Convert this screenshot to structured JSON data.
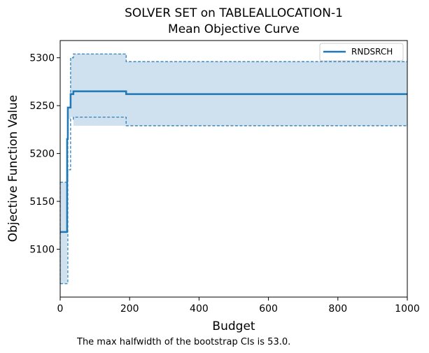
{
  "chart_data": {
    "type": "line",
    "title": "SOLVER SET on TABLEALLOCATION-1",
    "subtitle": "Mean Objective Curve",
    "xlabel": "Budget",
    "ylabel": "Objective Function Value",
    "xlim": [
      0,
      1000
    ],
    "ylim": [
      5050,
      5318
    ],
    "xticks": [
      0,
      200,
      400,
      600,
      800,
      1000
    ],
    "yticks": [
      5100,
      5150,
      5200,
      5250,
      5300
    ],
    "grid": false,
    "legend_position": "top-right",
    "note": "The max halfwidth of the bootstrap CIs is 53.0.",
    "colors": {
      "line": "#1f77b4",
      "fill": "#cfe1ef"
    },
    "series": [
      {
        "name": "RNDSRCH",
        "x": [
          0,
          20,
          22,
          30,
          38,
          190,
          1000
        ],
        "mean": [
          5118,
          5215,
          5248,
          5262,
          5265,
          5262,
          5262
        ],
        "lower": [
          5064,
          5064,
          5183,
          5236,
          5238,
          5229,
          5229
        ],
        "upper": [
          5170,
          5170,
          5248,
          5300,
          5304,
          5296,
          5296
        ]
      }
    ]
  }
}
